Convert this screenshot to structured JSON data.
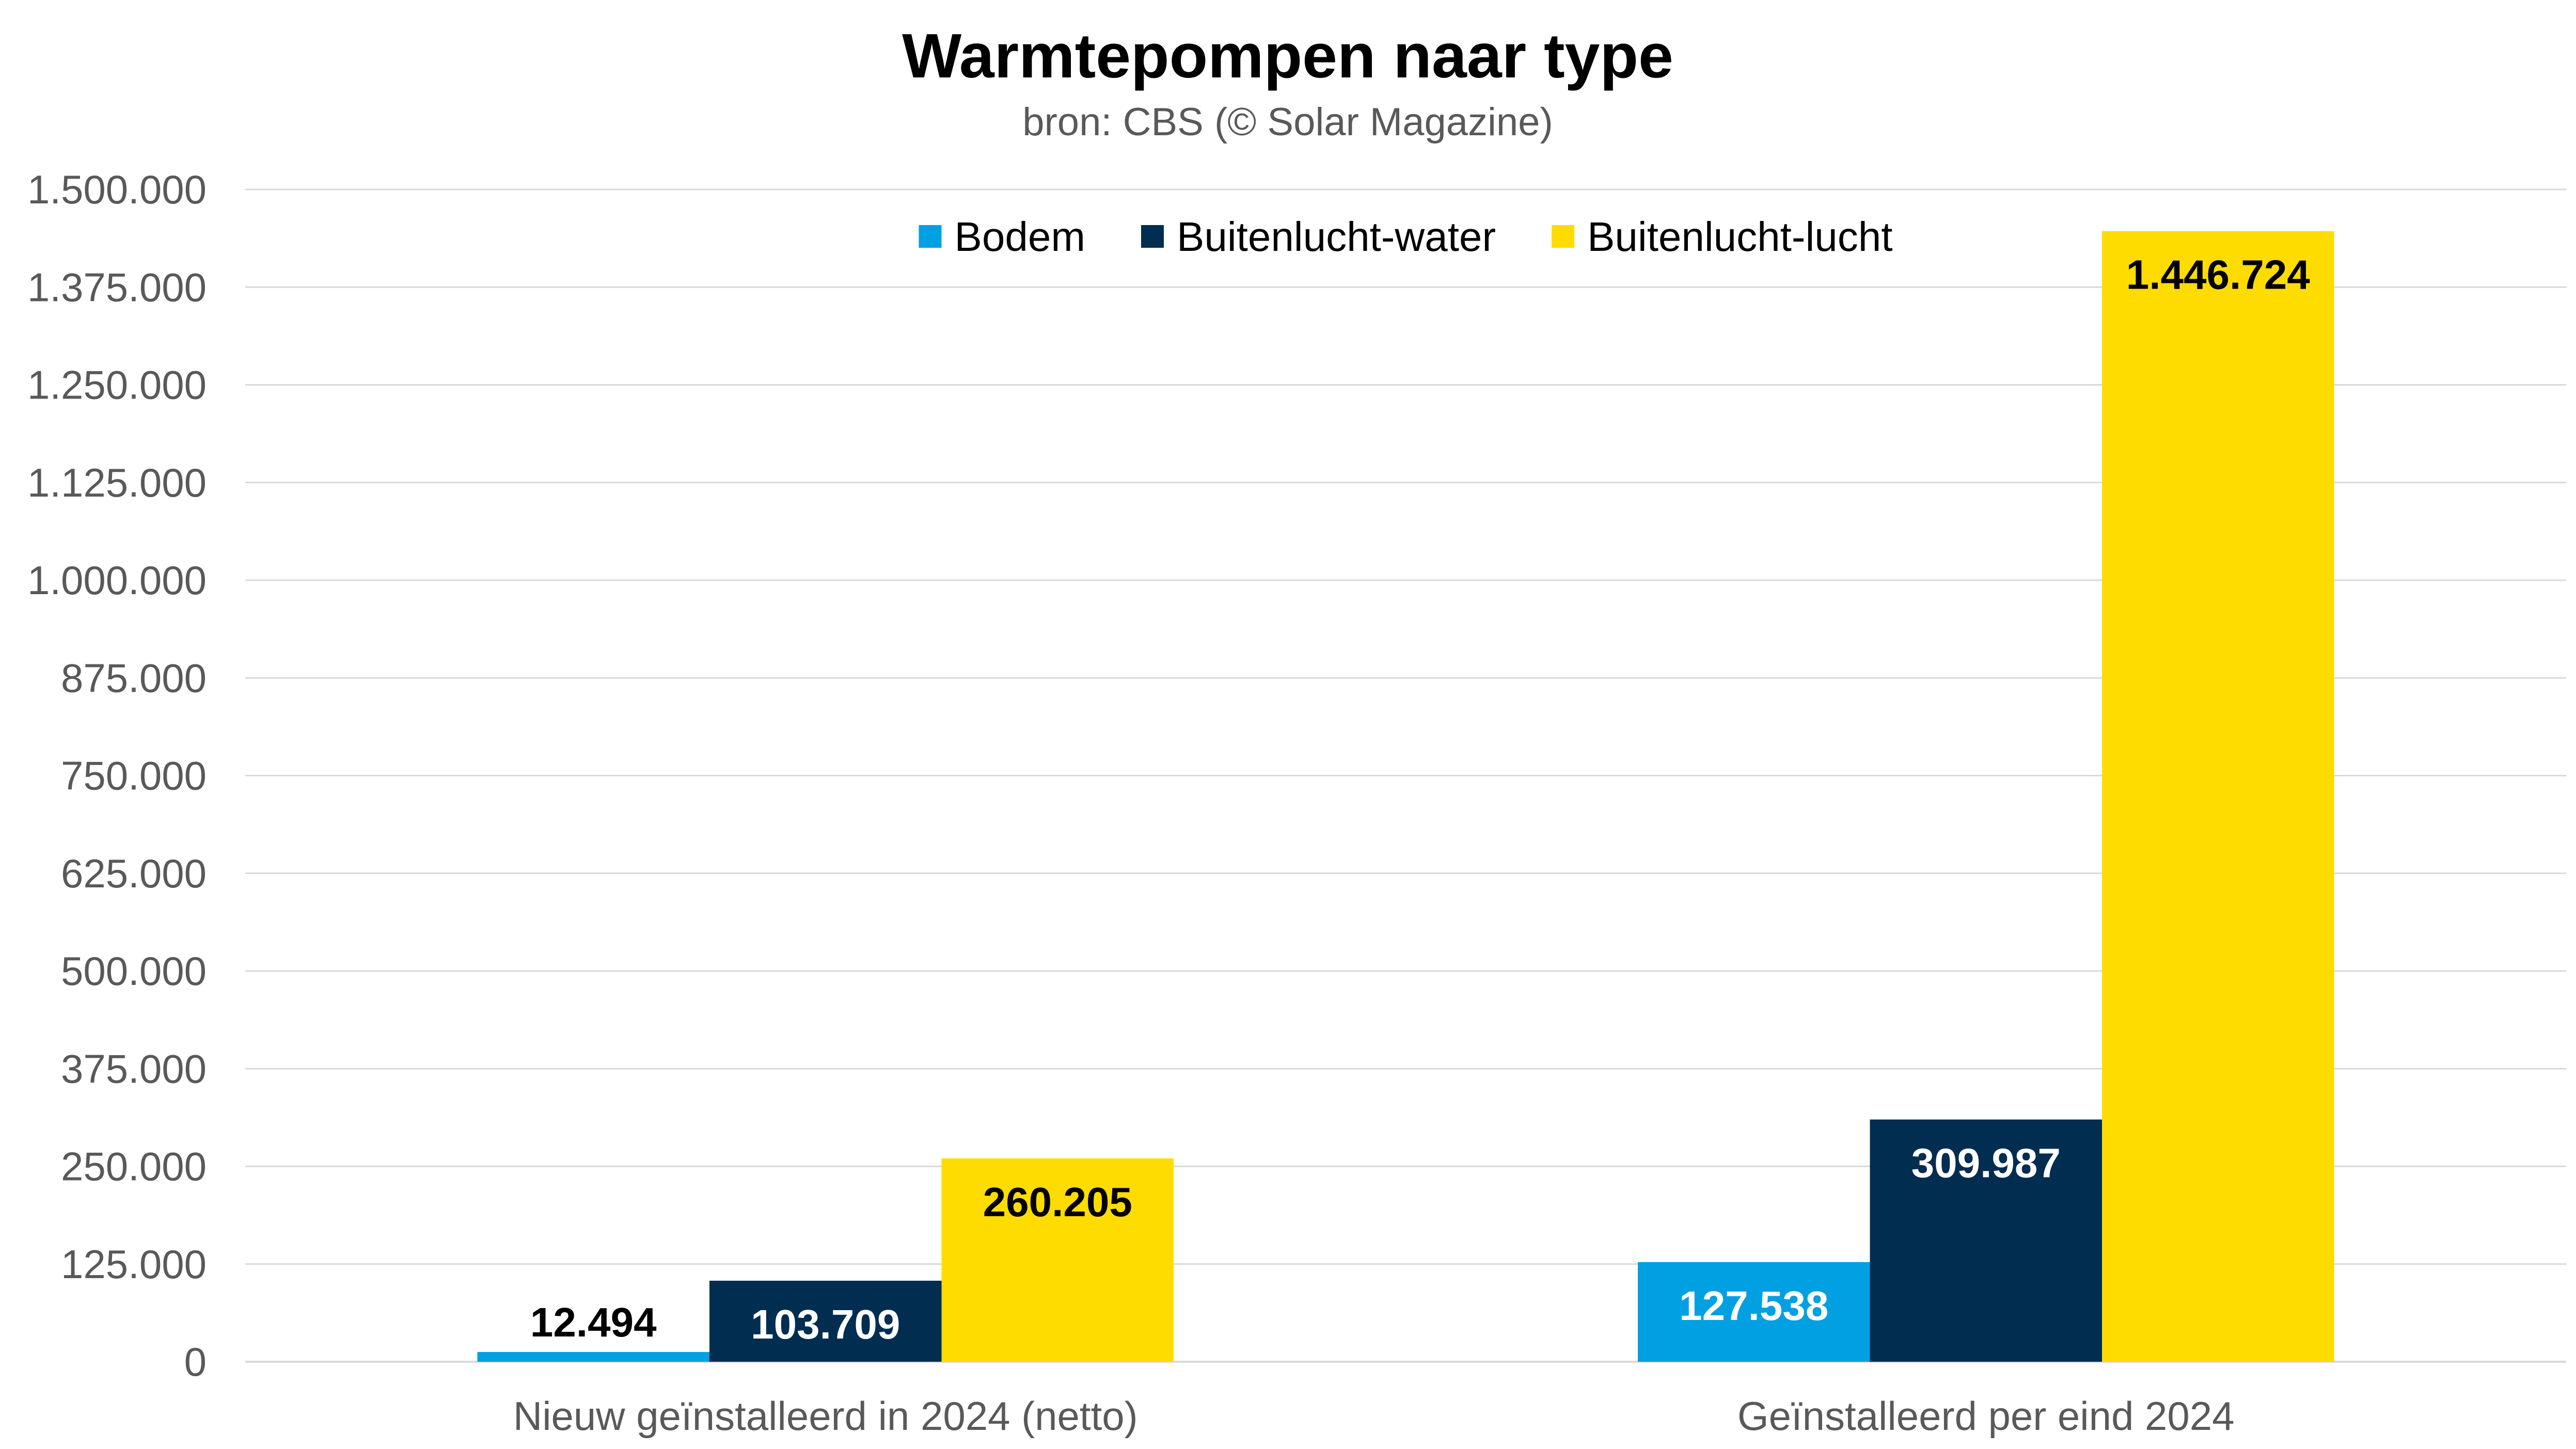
{
  "chart_data": {
    "type": "bar",
    "title": "Warmtepompen naar type",
    "subtitle": "bron: CBS (© Solar Magazine)",
    "categories": [
      "Nieuw geïnstalleerd in 2024 (netto)",
      "Geïnstalleerd per eind 2024"
    ],
    "series": [
      {
        "name": "Bodem",
        "color": "#00a0e3",
        "label_color": "#ffffff",
        "values": [
          12494,
          127538
        ],
        "labels": [
          "12.494",
          "127.538"
        ]
      },
      {
        "name": "Buitenlucht-water",
        "color": "#002d50",
        "label_color": "#ffffff",
        "values": [
          103709,
          309987
        ],
        "labels": [
          "103.709",
          "309.987"
        ]
      },
      {
        "name": "Buitenlucht-lucht",
        "color": "#ffdc00",
        "label_color": "#000000",
        "values": [
          260205,
          1446724
        ],
        "labels": [
          "260.205",
          "1.446.724"
        ]
      }
    ],
    "ylim": [
      0,
      1500000
    ],
    "yticks": [
      0,
      125000,
      250000,
      375000,
      500000,
      625000,
      750000,
      875000,
      1000000,
      1125000,
      1250000,
      1375000,
      1500000
    ],
    "ytick_labels": [
      "0",
      "125.000",
      "250.000",
      "375.000",
      "500.000",
      "625.000",
      "750.000",
      "875.000",
      "1.000.000",
      "1.125.000",
      "1.250.000",
      "1.375.000",
      "1.500.000"
    ],
    "grid": true,
    "legend_position": "top-center",
    "xlabel": "",
    "ylabel": ""
  }
}
